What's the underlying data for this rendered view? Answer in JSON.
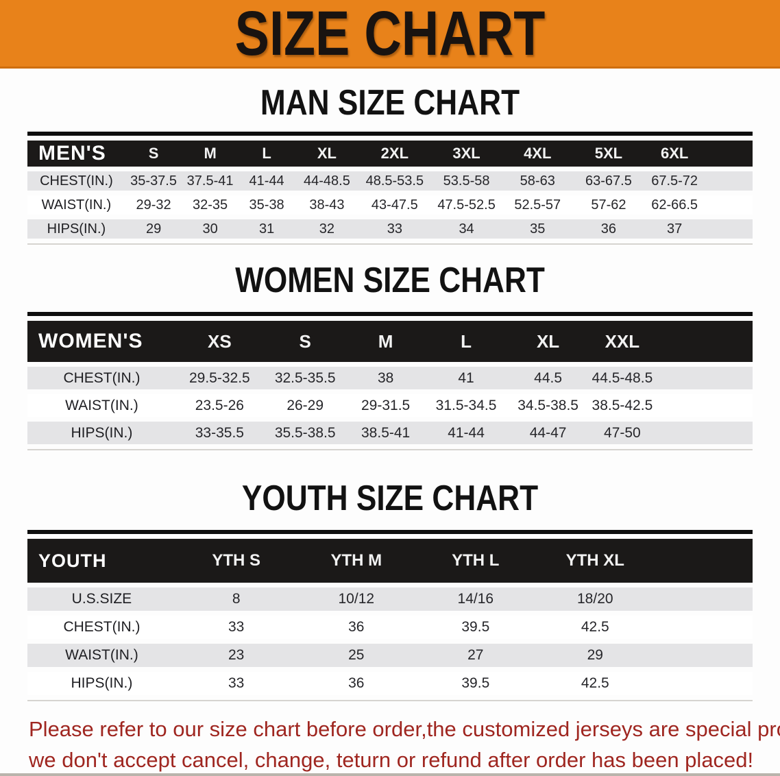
{
  "banner": {
    "title": "SIZE CHART"
  },
  "colors": {
    "banner_bg": "#e8821a",
    "table_header_bg": "#1b1918",
    "row_stripe": "#e4e4e6",
    "disclaimer_color": "#9f2620"
  },
  "sections": {
    "men": {
      "heading": "MAN SIZE CHART",
      "corner_label": "MEN'S",
      "columns": [
        "S",
        "M",
        "L",
        "XL",
        "2XL",
        "3XL",
        "4XL",
        "5XL",
        "6XL"
      ],
      "rows": [
        {
          "label": "CHEST(IN.)",
          "values": [
            "35-37.5",
            "37.5-41",
            "41-44",
            "44-48.5",
            "48.5-53.5",
            "53.5-58",
            "58-63",
            "63-67.5",
            "67.5-72"
          ]
        },
        {
          "label": "WAIST(IN.)",
          "values": [
            "29-32",
            "32-35",
            "35-38",
            "38-43",
            "43-47.5",
            "47.5-52.5",
            "52.5-57",
            "57-62",
            "62-66.5"
          ]
        },
        {
          "label": "HIPS(IN.)",
          "values": [
            "29",
            "30",
            "31",
            "32",
            "33",
            "34",
            "35",
            "36",
            "37"
          ]
        }
      ]
    },
    "women": {
      "heading": "WOMEN SIZE CHART",
      "corner_label": "WOMEN'S",
      "columns": [
        "XS",
        "S",
        "M",
        "L",
        "XL",
        "XXL"
      ],
      "rows": [
        {
          "label": "CHEST(IN.)",
          "values": [
            "29.5-32.5",
            "32.5-35.5",
            "38",
            "41",
            "44.5",
            "44.5-48.5"
          ]
        },
        {
          "label": "WAIST(IN.)",
          "values": [
            "23.5-26",
            "26-29",
            "29-31.5",
            "31.5-34.5",
            "34.5-38.5",
            "38.5-42.5"
          ]
        },
        {
          "label": "HIPS(IN.)",
          "values": [
            "33-35.5",
            "35.5-38.5",
            "38.5-41",
            "41-44",
            "44-47",
            "47-50"
          ]
        }
      ]
    },
    "youth": {
      "heading": "YOUTH SIZE CHART",
      "corner_label": "YOUTH",
      "columns": [
        "YTH S",
        "YTH M",
        "YTH L",
        "YTH XL"
      ],
      "rows": [
        {
          "label": "U.S.SIZE",
          "values": [
            "8",
            "10/12",
            "14/16",
            "18/20"
          ]
        },
        {
          "label": "CHEST(IN.)",
          "values": [
            "33",
            "36",
            "39.5",
            "42.5"
          ]
        },
        {
          "label": "WAIST(IN.)",
          "values": [
            "23",
            "25",
            "27",
            "29"
          ]
        },
        {
          "label": "HIPS(IN.)",
          "values": [
            "33",
            "36",
            "39.5",
            "42.5"
          ]
        }
      ]
    }
  },
  "disclaimer": {
    "line1": "Please refer to our size chart before order,the customized jerseys are special products,",
    "line2": "we don't accept cancel, change, teturn or refund after order has been placed!"
  }
}
